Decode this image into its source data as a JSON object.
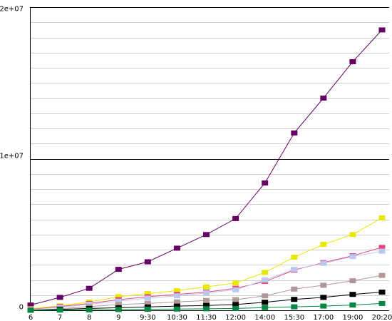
{
  "chart_data": {
    "type": "line",
    "title": "",
    "xlabel": "",
    "ylabel": "",
    "categories": [
      "6",
      "7",
      "8",
      "9",
      "9:30",
      "10:30",
      "11:30",
      "12:00",
      "14:00",
      "15:30",
      "17:00",
      "19:00",
      "20:20"
    ],
    "y_ticks": [
      {
        "value": 0,
        "label": "0"
      },
      {
        "value": 10000000,
        "label": "1e+07"
      },
      {
        "value": 20000000,
        "label": "2e+07"
      }
    ],
    "ylim": [
      0,
      20000000
    ],
    "minor_gridlines": true,
    "legend": "none",
    "series": [
      {
        "color": "#660066",
        "values": [
          350000,
          850000,
          1450000,
          2700000,
          3200000,
          4100000,
          5000000,
          6050000,
          8400000,
          11700000,
          14000000,
          16400000,
          18500000
        ]
      },
      {
        "color": "#e8e800",
        "values": [
          100000,
          300000,
          550000,
          900000,
          1100000,
          1300000,
          1550000,
          1800000,
          2500000,
          3500000,
          4350000,
          5000000,
          6100000
        ]
      },
      {
        "color": "#ee4477",
        "values": [
          60000,
          250000,
          450000,
          700000,
          900000,
          1050000,
          1200000,
          1450000,
          1900000,
          2650000,
          3150000,
          3600000,
          4150000
        ]
      },
      {
        "color": "#b8c8f0",
        "values": [
          40000,
          200000,
          400000,
          600000,
          800000,
          950000,
          1150000,
          1350000,
          2000000,
          2700000,
          3100000,
          3550000,
          3900000
        ]
      },
      {
        "color": "#b09898",
        "values": [
          20000,
          100000,
          250000,
          380000,
          450000,
          550000,
          650000,
          700000,
          950000,
          1400000,
          1650000,
          1950000,
          2300000
        ]
      },
      {
        "color": "#000000",
        "values": [
          0,
          60000,
          120000,
          170000,
          220000,
          280000,
          320000,
          380000,
          530000,
          720000,
          850000,
          1050000,
          1200000
        ]
      },
      {
        "color": "#008844",
        "values": [
          0,
          15000,
          30000,
          50000,
          70000,
          80000,
          100000,
          120000,
          180000,
          230000,
          280000,
          350000,
          450000
        ]
      }
    ]
  }
}
